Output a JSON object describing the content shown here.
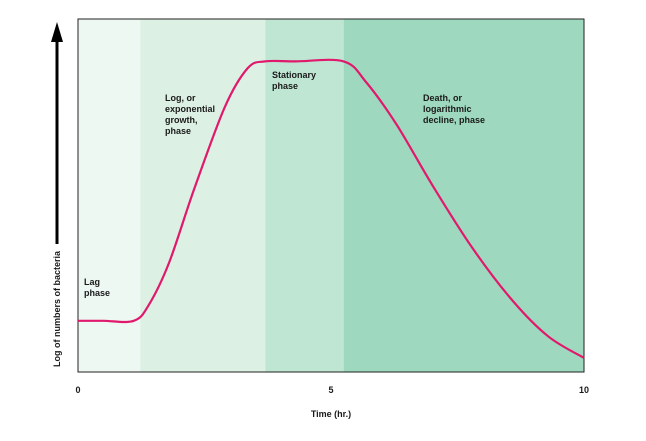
{
  "chart_data": {
    "type": "line",
    "xlabel": "Time (hr.)",
    "ylabel": "Log of numbers of bacteria",
    "xlim": [
      0,
      10
    ],
    "x_ticks": [
      "0",
      "5",
      "10"
    ],
    "ylim": [
      0,
      1
    ],
    "grid": false,
    "regions": [
      {
        "name": "lag",
        "label_lines": [
          "Lag",
          "phase"
        ],
        "x_start": 0,
        "x_end": 1.23,
        "color": "#eef8f2"
      },
      {
        "name": "log",
        "label_lines": [
          "Log, or",
          "exponential",
          "growth,",
          "phase"
        ],
        "x_start": 1.23,
        "x_end": 3.7,
        "color": "#dcf1e4"
      },
      {
        "name": "stationary",
        "label_lines": [
          "Stationary",
          "phase"
        ],
        "x_start": 3.7,
        "x_end": 5.25,
        "color": "#bfe6d3"
      },
      {
        "name": "death",
        "label_lines": [
          "Death, or",
          "logarithmic",
          "decline, phase"
        ],
        "x_start": 5.25,
        "x_end": 10,
        "color": "#9ed9bf"
      }
    ],
    "series": [
      {
        "color": "#e0196d",
        "x": [
          0,
          0.5,
          1.1,
          1.4,
          1.8,
          2.3,
          2.9,
          3.35,
          3.7,
          4.3,
          5.25,
          5.7,
          6.3,
          7.0,
          7.8,
          8.6,
          9.3,
          10
        ],
        "y": [
          0.145,
          0.145,
          0.145,
          0.19,
          0.31,
          0.52,
          0.75,
          0.86,
          0.88,
          0.88,
          0.88,
          0.82,
          0.7,
          0.53,
          0.35,
          0.2,
          0.1,
          0.04
        ]
      }
    ]
  }
}
